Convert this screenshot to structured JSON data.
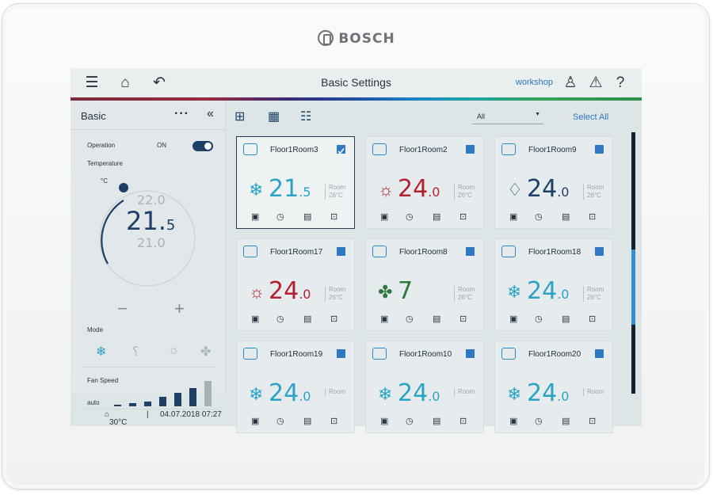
{
  "device": {
    "brand": "BOSCH"
  },
  "topbar": {
    "title": "Basic Settings",
    "user": "workshop",
    "icons": [
      "menu-icon",
      "home-icon",
      "back-icon",
      "user-icon",
      "warning-icon",
      "help-icon"
    ]
  },
  "left": {
    "label": "Basic",
    "more": "···",
    "collapse": "«",
    "operation_label": "Operation",
    "operation_state": "ON",
    "temperature_label": "Temperature",
    "unit": "°C",
    "temp_upper": "22.0",
    "temp_main": "21.",
    "temp_main_dec": "5",
    "temp_lower": "21.0",
    "minus": "−",
    "plus": "+",
    "mode_label": "Mode",
    "modes": [
      "cool-icon",
      "dry-icon",
      "heat-icon",
      "fan-icon"
    ],
    "fan_label": "Fan Speed",
    "fan_value": "auto",
    "fan_levels": 7,
    "fan_selected": 6
  },
  "right": {
    "filter_value": "All",
    "select_all": "Select All",
    "view_icons": [
      "floorplan-icon",
      "grid-icon",
      "list-icon"
    ]
  },
  "rooms": [
    {
      "name": "Floor1Room3",
      "icon": "cassette-icon",
      "mode": "cool",
      "temp": "21",
      "dec": ".5",
      "room": "Room",
      "room_temp": "26°C",
      "selected": true,
      "color": "#2ba3c4"
    },
    {
      "name": "Floor1Room2",
      "icon": "wall-unit-icon",
      "mode": "heat",
      "temp": "24",
      "dec": ".0",
      "room": "Room",
      "room_temp": "26°C",
      "selected": false,
      "color": "#b3202f"
    },
    {
      "name": "Floor1Room9",
      "icon": "ceiling-unit-icon",
      "mode": "dry",
      "temp": "24",
      "dec": ".0",
      "room": "Room",
      "room_temp": "26°C",
      "selected": false,
      "color": "#1e3f66"
    },
    {
      "name": "Floor1Room17",
      "icon": "ceiling-unit-icon",
      "mode": "heat",
      "temp": "24",
      "dec": ".0",
      "room": "Room",
      "room_temp": "26°C",
      "selected": false,
      "color": "#b3202f"
    },
    {
      "name": "Floor1Room8",
      "icon": "ceiling-unit-icon",
      "mode": "fan",
      "temp": "7",
      "dec": "",
      "room": "Room",
      "room_temp": "26°C",
      "selected": false,
      "color": "#2d7a3a"
    },
    {
      "name": "Floor1Room18",
      "icon": "ceiling-unit-icon",
      "mode": "cool",
      "temp": "24",
      "dec": ".0",
      "room": "Room",
      "room_temp": "26°C",
      "selected": false,
      "color": "#2ba3c4"
    },
    {
      "name": "Floor1Room19",
      "icon": "ceiling-unit-icon",
      "mode": "cool",
      "temp": "24",
      "dec": ".0",
      "room": "Room",
      "room_temp": "",
      "selected": false,
      "color": "#2ba3c4"
    },
    {
      "name": "Floor1Room10",
      "icon": "ceiling-unit-icon",
      "mode": "cool",
      "temp": "24",
      "dec": ".0",
      "room": "Room",
      "room_temp": "",
      "selected": false,
      "color": "#2ba3c4"
    },
    {
      "name": "Floor1Room20",
      "icon": "ceiling-unit-icon",
      "mode": "cool",
      "temp": "24",
      "dec": ".0",
      "room": "Room",
      "room_temp": "",
      "selected": false,
      "color": "#2ba3c4"
    }
  ],
  "status": {
    "outdoor": "30°C",
    "divider": "|",
    "datetime": "04.07.2018 07:27"
  }
}
